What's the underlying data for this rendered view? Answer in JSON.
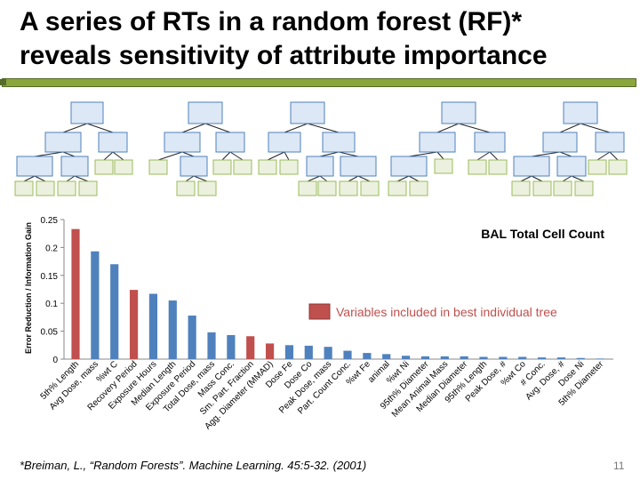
{
  "slide": {
    "title_line1": "A series of RTs in a random forest (RF)*",
    "title_line2": "reveals sensitivity of attribute importance",
    "footnote": "*Breiman, L., “Random Forests”. Machine Learning. 45:5-32. (2001)",
    "slide_number": "11",
    "colors": {
      "accent_bar": "#8aa63c",
      "tree_node_fill": "#dce8f5",
      "tree_node_border": "#4f81bd",
      "tree_leaf_fill": "#ebf1de",
      "tree_leaf_border": "#9bbb59"
    }
  },
  "chart_data": {
    "type": "bar",
    "title": "BAL Total Cell Count",
    "ylabel": "Error Reduction / Information Gain",
    "xlabel": "",
    "ylim": [
      0,
      0.25
    ],
    "yticks": [
      "0",
      "0.05",
      "0.1",
      "0.15",
      "0.2",
      "0.25"
    ],
    "grid": false,
    "categories": [
      "5th% Length",
      "Avg Dose, mass",
      "%wt C",
      "Recovery Period",
      "Exposure Hours",
      "Median Length",
      "Exposure Period",
      "Total Dose, mass",
      "Mass Conc.",
      "Sm. Part. Fraction",
      "Agg. Diameter (MMAD)",
      "Dose Fe",
      "Dose Co",
      "Peak Dose, mass",
      "Part. Count Conc.",
      "%wt Fe",
      "animal",
      "%wt Ni",
      "95th% Diameter",
      "Mean Animal Mass",
      "Median Diameter",
      "95th% Length",
      "Peak Dose, #",
      "%wt Co",
      "# Conc.",
      "Avg. Dose, #",
      "Dose Ni",
      "5th% Diameter"
    ],
    "values": [
      0.233,
      0.193,
      0.17,
      0.124,
      0.117,
      0.105,
      0.078,
      0.048,
      0.043,
      0.041,
      0.028,
      0.025,
      0.024,
      0.022,
      0.015,
      0.011,
      0.009,
      0.006,
      0.005,
      0.005,
      0.005,
      0.004,
      0.004,
      0.004,
      0.003,
      0.003,
      0.002,
      0.001
    ],
    "in_best_tree": [
      true,
      false,
      false,
      true,
      false,
      false,
      false,
      false,
      false,
      true,
      true,
      false,
      false,
      false,
      false,
      false,
      false,
      false,
      false,
      false,
      false,
      false,
      false,
      false,
      false,
      false,
      false,
      false
    ],
    "colors": {
      "default": "#4f81bd",
      "highlight": "#c0504d",
      "legend_text": "#c0504d"
    },
    "legend": {
      "label": "Variables included in best individual tree",
      "placement": "center-right"
    }
  }
}
